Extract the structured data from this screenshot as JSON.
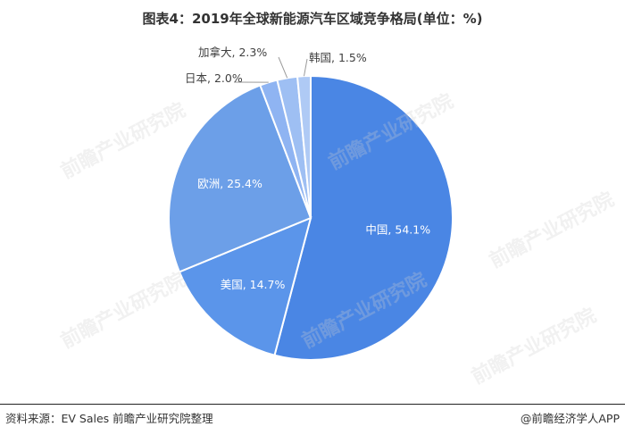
{
  "title": "图表4：2019年全球新能源汽车区域竞争格局(单位：%)",
  "source": "资料来源：EV Sales 前瞻产业研究院整理",
  "credit": "@前瞻经济学人APP",
  "watermark": "前瞻产业研究院",
  "colors": {
    "china": "#4a86e4",
    "usa": "#5b95ea",
    "europe": "#6c9fe8",
    "japan": "#8fb4f2",
    "canada": "#9ebff3",
    "korea": "#afcaf5",
    "label_inside": "#ffffff",
    "label_outside": "#404040"
  },
  "chart_data": {
    "type": "pie",
    "title": "图表4：2019年全球新能源汽车区域竞争格局(单位：%)",
    "categories": [
      "中国",
      "美国",
      "欧洲",
      "日本",
      "加拿大",
      "韩国"
    ],
    "values": [
      54.1,
      14.7,
      25.4,
      2.0,
      2.3,
      1.5
    ],
    "labels": [
      "中国, 54.1%",
      "美国, 14.7%",
      "欧洲, 25.4%",
      "日本, 2.0%",
      "加拿大, 2.3%",
      "韩国, 1.5%"
    ],
    "unit": "%"
  }
}
